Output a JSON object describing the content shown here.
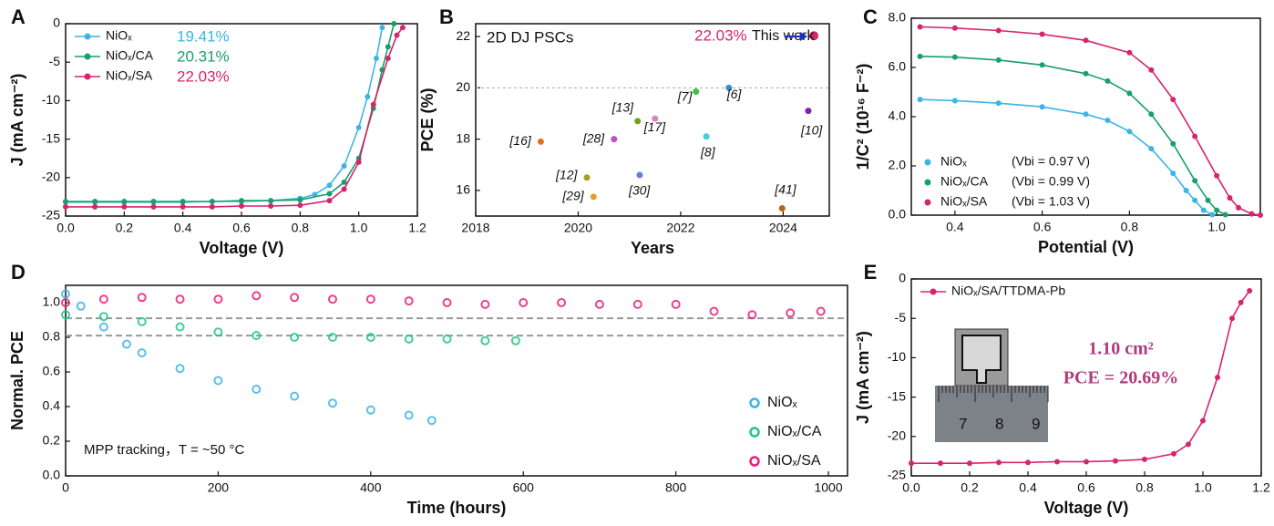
{
  "chart_data": [
    {
      "panel": "A",
      "type": "line",
      "xlabel": "Voltage (V)",
      "ylabel": "J (mA cm⁻²)",
      "xlim": [
        0,
        1.2
      ],
      "ylim": [
        -25,
        0
      ],
      "xticks": [
        {
          "value": 0,
          "label": "0.0"
        },
        {
          "value": 0.2,
          "label": "0.2"
        },
        {
          "value": 0.4,
          "label": "0.4"
        },
        {
          "value": 0.6,
          "label": "0.6"
        },
        {
          "value": 0.8,
          "label": "0.8"
        },
        {
          "value": 1,
          "label": "1.0"
        },
        {
          "value": 1.2,
          "label": "1.2"
        }
      ],
      "yticks": [
        -25,
        -20,
        -15,
        -10,
        -5,
        0
      ],
      "legend": "upper left",
      "series": [
        {
          "name": "NiOₓ",
          "color": "#3cb4e6",
          "x": [
            0,
            0.1,
            0.2,
            0.3,
            0.4,
            0.5,
            0.6,
            0.7,
            0.8,
            0.85,
            0.9,
            0.95,
            1.0,
            1.03,
            1.06,
            1.08
          ],
          "y": [
            -23.2,
            -23.2,
            -23.2,
            -23.2,
            -23.2,
            -23.1,
            -23.1,
            -23.0,
            -22.7,
            -22.2,
            -21.0,
            -18.5,
            -13.5,
            -9.5,
            -4.5,
            -0.5
          ]
        },
        {
          "name": "NiOₓ/CA",
          "color": "#17a06a",
          "x": [
            0,
            0.1,
            0.2,
            0.3,
            0.4,
            0.5,
            0.6,
            0.7,
            0.8,
            0.9,
            0.95,
            1.0,
            1.05,
            1.08,
            1.1,
            1.12
          ],
          "y": [
            -23.1,
            -23.1,
            -23.1,
            -23.1,
            -23.1,
            -23.1,
            -23.0,
            -23.0,
            -22.9,
            -22.1,
            -20.6,
            -17.5,
            -11.0,
            -6.0,
            -3.0,
            0
          ]
        },
        {
          "name": "NiOₓ/SA",
          "color": "#d6246e",
          "x": [
            0,
            0.1,
            0.2,
            0.3,
            0.4,
            0.5,
            0.6,
            0.7,
            0.8,
            0.9,
            0.95,
            1.0,
            1.05,
            1.1,
            1.13,
            1.15
          ],
          "y": [
            -23.8,
            -23.8,
            -23.8,
            -23.8,
            -23.8,
            -23.8,
            -23.7,
            -23.7,
            -23.6,
            -23.0,
            -21.5,
            -18.0,
            -10.5,
            -4.5,
            -1.5,
            -0.5
          ]
        }
      ],
      "annotations": [
        {
          "text": "19.41%",
          "color": "#3cb4e6"
        },
        {
          "text": "20.31%",
          "color": "#17a06a"
        },
        {
          "text": "22.03%",
          "color": "#d6246e"
        }
      ]
    },
    {
      "panel": "B",
      "type": "scatter",
      "xlabel": "Years",
      "ylabel": "PCE (%)",
      "xlim": [
        2018,
        2024.9
      ],
      "ylim": [
        15,
        22.5
      ],
      "xticks": [
        2018,
        2020,
        2022,
        2024
      ],
      "yticks": [
        16,
        18,
        20,
        22
      ],
      "reference_lines": [
        20
      ],
      "points": [
        {
          "label": "[16]",
          "x": 2019.27,
          "y": 17.9,
          "color": "#e07020"
        },
        {
          "label": "[12]",
          "x": 2020.17,
          "y": 16.5,
          "color": "#a0a020"
        },
        {
          "label": "[29]",
          "x": 2020.3,
          "y": 15.75,
          "color": "#e0a020"
        },
        {
          "label": "[28]",
          "x": 2020.7,
          "y": 18.0,
          "color": "#c050c0"
        },
        {
          "label": "[13]",
          "x": 2021.16,
          "y": 18.7,
          "color": "#70a020"
        },
        {
          "label": "[30]",
          "x": 2021.2,
          "y": 16.6,
          "color": "#6080e0"
        },
        {
          "label": "[17]",
          "x": 2021.5,
          "y": 18.8,
          "color": "#e080c0"
        },
        {
          "label": "[7]",
          "x": 2022.3,
          "y": 19.85,
          "color": "#40c040"
        },
        {
          "label": "[8]",
          "x": 2022.5,
          "y": 18.1,
          "color": "#40d0e0"
        },
        {
          "label": "[6]",
          "x": 2022.94,
          "y": 20.0,
          "color": "#3090d0"
        },
        {
          "label": "[41]",
          "x": 2023.98,
          "y": 15.3,
          "color": "#c06010"
        },
        {
          "label": "[10]",
          "x": 2024.49,
          "y": 19.1,
          "color": "#8020b0"
        },
        {
          "x": 2024.6,
          "y": 22.03,
          "color": "#d6246e"
        }
      ],
      "annotations": [
        {
          "text": "2D DJ PSCs"
        },
        {
          "text": "22.03%",
          "color": "#d6246e"
        },
        {
          "text": "This work"
        }
      ]
    },
    {
      "panel": "C",
      "type": "line",
      "xlabel": "Potential (V)",
      "ylabel": "1/C² (10¹⁶ F⁻²)",
      "xlim": [
        0.3,
        1.1
      ],
      "ylim": [
        0,
        8
      ],
      "xticks": [
        {
          "value": 0.4,
          "label": "0.4"
        },
        {
          "value": 0.6,
          "label": "0.6"
        },
        {
          "value": 0.8,
          "label": "0.8"
        },
        {
          "value": 1,
          "label": "1.0"
        }
      ],
      "yticks": [
        {
          "value": 0,
          "label": "0.0"
        },
        {
          "value": 2,
          "label": "2.0"
        },
        {
          "value": 4,
          "label": "4.0"
        },
        {
          "value": 6,
          "label": "6.0"
        },
        {
          "value": 8,
          "label": "8.0"
        }
      ],
      "legend": "lower left",
      "series": [
        {
          "name": "NiOₓ",
          "note": "(Vbi = 0.97 V)",
          "color": "#3cb4e6",
          "x": [
            0.32,
            0.4,
            0.5,
            0.6,
            0.7,
            0.75,
            0.8,
            0.85,
            0.9,
            0.93,
            0.95,
            0.97,
            0.99
          ],
          "y": [
            4.7,
            4.65,
            4.55,
            4.4,
            4.1,
            3.85,
            3.4,
            2.7,
            1.7,
            1.0,
            0.6,
            0.2,
            0.02
          ]
        },
        {
          "name": "NiOₓ/CA",
          "note": "(Vbi = 0.99 V)",
          "color": "#17a06a",
          "x": [
            0.32,
            0.4,
            0.5,
            0.6,
            0.7,
            0.75,
            0.8,
            0.85,
            0.9,
            0.95,
            0.98,
            1.0,
            1.02
          ],
          "y": [
            6.45,
            6.42,
            6.3,
            6.1,
            5.75,
            5.45,
            4.95,
            4.1,
            2.9,
            1.4,
            0.6,
            0.2,
            0.02
          ]
        },
        {
          "name": "NiOₓ/SA",
          "note": "(Vbi = 1.03 V)",
          "color": "#d6246e",
          "x": [
            0.32,
            0.4,
            0.5,
            0.6,
            0.7,
            0.8,
            0.85,
            0.9,
            0.95,
            1.0,
            1.03,
            1.05,
            1.08,
            1.1
          ],
          "y": [
            7.65,
            7.6,
            7.5,
            7.35,
            7.1,
            6.6,
            5.9,
            4.7,
            3.2,
            1.6,
            0.7,
            0.3,
            0.05,
            0
          ]
        }
      ]
    },
    {
      "panel": "D",
      "type": "line",
      "xlabel": "Time (hours)",
      "ylabel": "Normal. PCE",
      "xlim": [
        0,
        1025
      ],
      "ylim": [
        0,
        1.1
      ],
      "xticks": [
        0,
        200,
        400,
        600,
        800,
        1000
      ],
      "yticks": [
        {
          "value": 0,
          "label": "0.0"
        },
        {
          "value": 0.2,
          "label": "0.2"
        },
        {
          "value": 0.4,
          "label": "0.4"
        },
        {
          "value": 0.6,
          "label": "0.6"
        },
        {
          "value": 0.8,
          "label": "0.8"
        },
        {
          "value": 1,
          "label": "1.0"
        }
      ],
      "legend": "lower right",
      "reference_lines": [
        0.91,
        0.81
      ],
      "series": [
        {
          "name": "NiOₓ",
          "color": "#3cb4e6",
          "x": [
            0,
            20,
            50,
            80,
            100,
            150,
            200,
            250,
            300,
            350,
            400,
            450,
            480
          ],
          "y": [
            1.05,
            0.98,
            0.86,
            0.76,
            0.71,
            0.62,
            0.55,
            0.5,
            0.46,
            0.42,
            0.38,
            0.35,
            0.32
          ]
        },
        {
          "name": "NiOₓ/CA",
          "color": "#1ec882",
          "x": [
            0,
            50,
            100,
            150,
            200,
            250,
            300,
            350,
            400,
            450,
            500,
            550,
            590
          ],
          "y": [
            0.93,
            0.92,
            0.89,
            0.86,
            0.83,
            0.81,
            0.8,
            0.8,
            0.8,
            0.79,
            0.79,
            0.78,
            0.78
          ]
        },
        {
          "name": "NiOₓ/SA",
          "color": "#e8207a",
          "x": [
            0,
            50,
            100,
            150,
            200,
            250,
            300,
            350,
            400,
            450,
            500,
            550,
            600,
            650,
            700,
            750,
            800,
            850,
            900,
            950,
            990
          ],
          "y": [
            1.0,
            1.02,
            1.03,
            1.02,
            1.02,
            1.04,
            1.03,
            1.02,
            1.02,
            1.01,
            1.0,
            0.99,
            1.0,
            1.0,
            0.99,
            0.99,
            0.99,
            0.95,
            0.93,
            0.94,
            0.95
          ]
        }
      ],
      "annotations": [
        {
          "text": "MPP tracking，T = ~50 °C"
        }
      ]
    },
    {
      "panel": "E",
      "type": "line",
      "xlabel": "Voltage (V)",
      "ylabel": "J (mA cm⁻²)",
      "xlim": [
        0,
        1.2
      ],
      "ylim": [
        -25,
        0
      ],
      "xticks": [
        {
          "value": 0,
          "label": "0.0"
        },
        {
          "value": 0.2,
          "label": "0.2"
        },
        {
          "value": 0.4,
          "label": "0.4"
        },
        {
          "value": 0.6,
          "label": "0.6"
        },
        {
          "value": 0.8,
          "label": "0.8"
        },
        {
          "value": 1,
          "label": "1.0"
        },
        {
          "value": 1.2,
          "label": "1.2"
        }
      ],
      "yticks": [
        -25,
        -20,
        -15,
        -10,
        -5,
        0
      ],
      "legend": "upper left",
      "series": [
        {
          "name": "NiOₓ/SA/TTDMA-Pb",
          "color": "#d6246e",
          "x": [
            0,
            0.1,
            0.2,
            0.3,
            0.4,
            0.5,
            0.6,
            0.7,
            0.8,
            0.9,
            0.95,
            1.0,
            1.05,
            1.1,
            1.13,
            1.16
          ],
          "y": [
            -23.4,
            -23.4,
            -23.4,
            -23.3,
            -23.3,
            -23.2,
            -23.2,
            -23.1,
            -22.9,
            -22.2,
            -21.0,
            -18.0,
            -12.5,
            -5.0,
            -3.0,
            -1.5
          ]
        }
      ],
      "annotations": [
        {
          "text": "1.10 cm²",
          "color": "#b03a7e"
        },
        {
          "text": "PCE = 20.69%",
          "color": "#b03a7e"
        }
      ],
      "inset_labels": [
        "7",
        "8",
        "9"
      ]
    }
  ]
}
